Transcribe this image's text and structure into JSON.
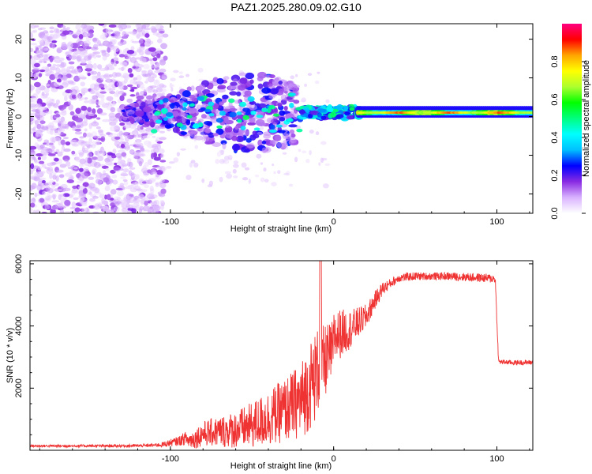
{
  "title": "PAZ1.2025.280.09.02.G10",
  "chart_data": [
    {
      "type": "heatmap",
      "xlabel": "Height of straight line (km)",
      "ylabel": "Frequency (Hz)",
      "xlim": [
        -186,
        122
      ],
      "ylim": [
        -25,
        24
      ],
      "xticks": [
        -100,
        0,
        100
      ],
      "yticks": [
        20,
        10,
        0,
        -10,
        -20
      ],
      "colorbar": {
        "label": "Normalized spectral amplitude",
        "ticks": [
          0.0,
          0.2,
          0.4,
          0.6,
          0.8
        ],
        "range": [
          0,
          1
        ],
        "colors": [
          "#ffffff",
          "#d9b3ff",
          "#8a2be2",
          "#0000ff",
          "#00bfff",
          "#00ffff",
          "#00ff7f",
          "#00ff00",
          "#adff2f",
          "#ffff00",
          "#ffa500",
          "#ff0000",
          "#ff0080"
        ]
      },
      "description_regions": {
        "noise_scatter_x": [
          -186,
          -103
        ],
        "cluster_x": [
          -128,
          -22
        ],
        "carrier_start_km": 15,
        "carrier_frequency_hz": 1
      }
    },
    {
      "type": "line",
      "xlabel": "Height of straight line (km)",
      "ylabel": "SNR (10 * v/v)",
      "xlim": [
        -186,
        122
      ],
      "ylim": [
        0,
        6100
      ],
      "xticks": [
        -100,
        0,
        100
      ],
      "yticks": [
        2000,
        4000,
        6000
      ],
      "color": "#ef3333",
      "profile": [
        [
          -186,
          140
        ],
        [
          -140,
          140
        ],
        [
          -115,
          150
        ],
        [
          -105,
          180
        ],
        [
          -95,
          300
        ],
        [
          -85,
          500
        ],
        [
          -80,
          700
        ],
        [
          -70,
          800
        ],
        [
          -60,
          900
        ],
        [
          -50,
          1100
        ],
        [
          -40,
          1400
        ],
        [
          -30,
          1700
        ],
        [
          -20,
          2100
        ],
        [
          -15,
          2600
        ],
        [
          -10,
          3100
        ],
        [
          -5,
          3350
        ],
        [
          0,
          3650
        ],
        [
          10,
          3900
        ],
        [
          20,
          4300
        ],
        [
          25,
          4800
        ],
        [
          30,
          5200
        ],
        [
          40,
          5550
        ],
        [
          50,
          5600
        ],
        [
          70,
          5600
        ],
        [
          90,
          5550
        ],
        [
          99,
          5520
        ],
        [
          101,
          2850
        ],
        [
          110,
          2820
        ],
        [
          122,
          2830
        ]
      ],
      "noise_amplitude": [
        [
          -186,
          40
        ],
        [
          -110,
          50
        ],
        [
          -95,
          150
        ],
        [
          -80,
          400
        ],
        [
          -60,
          600
        ],
        [
          -40,
          900
        ],
        [
          -25,
          1100
        ],
        [
          -12,
          1500
        ],
        [
          0,
          900
        ],
        [
          15,
          500
        ],
        [
          25,
          300
        ],
        [
          35,
          150
        ],
        [
          60,
          120
        ],
        [
          99,
          150
        ],
        [
          101,
          80
        ],
        [
          122,
          80
        ]
      ]
    }
  ]
}
